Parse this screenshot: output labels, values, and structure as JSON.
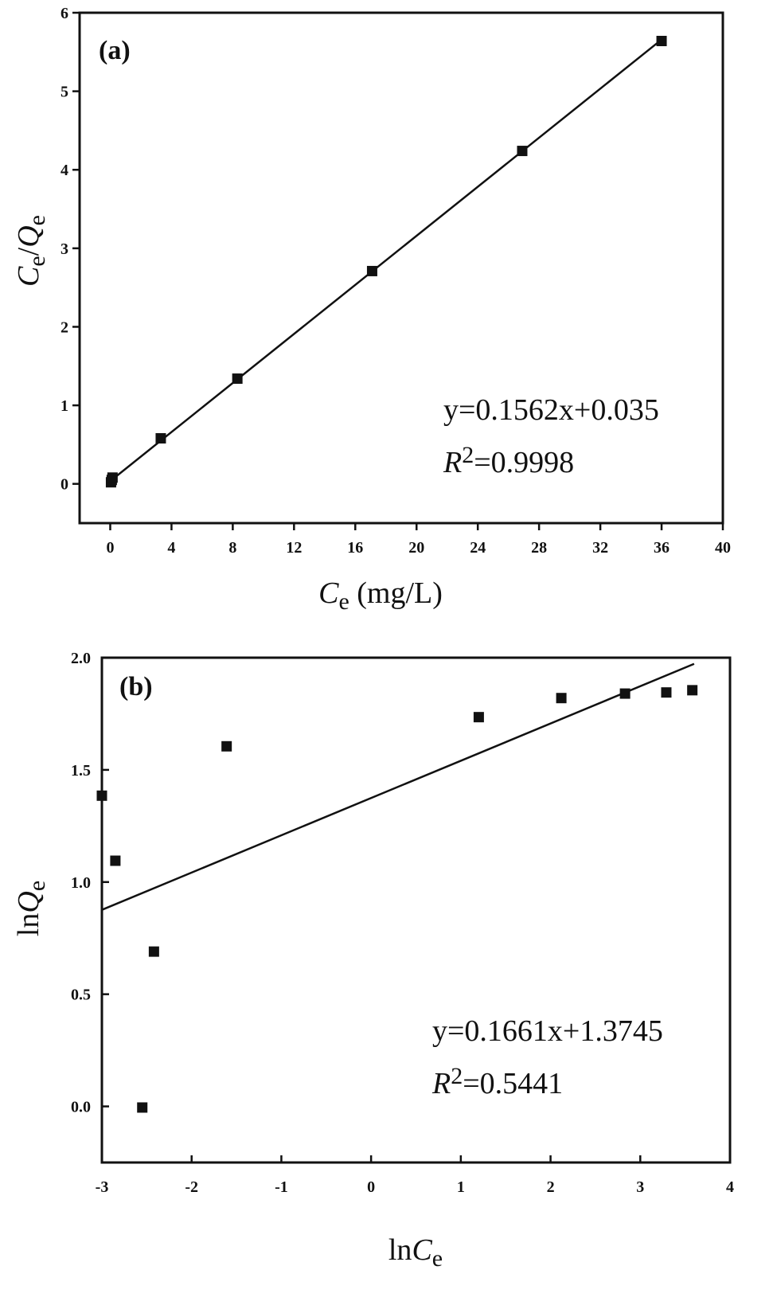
{
  "chart_data": [
    {
      "type": "scatter",
      "panel_label": "(a)",
      "xlabel": {
        "main": "C",
        "sub": "e",
        "suffix": " (mg/L)"
      },
      "ylabel": {
        "main1": "C",
        "sub1": "e",
        "sep": "/",
        "main2": "Q",
        "sub2": "e"
      },
      "xlim": [
        -2,
        40
      ],
      "ylim": [
        -0.5,
        6
      ],
      "xticks": [
        0,
        4,
        8,
        12,
        16,
        20,
        24,
        28,
        32,
        36,
        40
      ],
      "yticks": [
        0,
        1,
        2,
        3,
        4,
        5,
        6
      ],
      "xtick_labels": [
        "0",
        "4",
        "8",
        "12",
        "16",
        "20",
        "24",
        "28",
        "32",
        "36",
        "40"
      ],
      "ytick_labels": [
        "0",
        "1",
        "2",
        "3",
        "4",
        "5",
        "6"
      ],
      "points": [
        {
          "x": 0.05,
          "y": 0.02
        },
        {
          "x": 0.1,
          "y": 0.05
        },
        {
          "x": 0.15,
          "y": 0.08
        },
        {
          "x": 3.3,
          "y": 0.58
        },
        {
          "x": 8.3,
          "y": 1.34
        },
        {
          "x": 17.1,
          "y": 2.71
        },
        {
          "x": 26.9,
          "y": 4.24
        },
        {
          "x": 36.0,
          "y": 5.64
        }
      ],
      "fit": {
        "slope": 0.1562,
        "intercept": 0.035,
        "x_range": [
          0,
          36
        ]
      },
      "equation": "y=0.1562x+0.035",
      "r2": {
        "main": "R",
        "sup": "2",
        "value": "=0.9998"
      }
    },
    {
      "type": "scatter",
      "panel_label": "(b)",
      "xlabel": {
        "main": "ln",
        "italic": "C",
        "sub": "e"
      },
      "ylabel": {
        "main": "ln",
        "italic": "Q",
        "sub": "e"
      },
      "xlim": [
        -3,
        4
      ],
      "ylim": [
        -0.25,
        2.0
      ],
      "xticks": [
        -3,
        -2,
        -1,
        0,
        1,
        2,
        3,
        4
      ],
      "yticks": [
        0.0,
        0.5,
        1.0,
        1.5,
        2.0
      ],
      "xtick_labels": [
        "-3",
        "-2",
        "-1",
        "0",
        "1",
        "2",
        "3",
        "4"
      ],
      "ytick_labels": [
        "0.0",
        "0.5",
        "1.0",
        "1.5",
        "2.0"
      ],
      "points": [
        {
          "x": -3.0,
          "y": 1.385
        },
        {
          "x": -2.85,
          "y": 1.095
        },
        {
          "x": -2.55,
          "y": -0.005
        },
        {
          "x": -2.42,
          "y": 0.69
        },
        {
          "x": -1.61,
          "y": 1.605
        },
        {
          "x": 1.2,
          "y": 1.735
        },
        {
          "x": 2.12,
          "y": 1.82
        },
        {
          "x": 2.83,
          "y": 1.84
        },
        {
          "x": 3.29,
          "y": 1.845
        },
        {
          "x": 3.58,
          "y": 1.855
        }
      ],
      "fit": {
        "slope": 0.1661,
        "intercept": 1.3745,
        "x_range": [
          -3,
          3.6
        ]
      },
      "equation": "y=0.1661x+1.3745",
      "r2": {
        "main": "R",
        "sup": "2",
        "value": "=0.5441"
      }
    }
  ]
}
